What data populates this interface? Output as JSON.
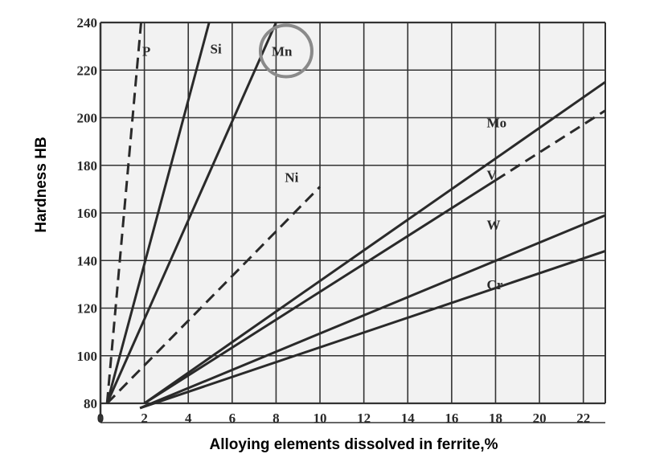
{
  "chart_data": {
    "type": "line",
    "title": "",
    "xlabel": "Alloying elements dissolved in ferrite,%",
    "ylabel": "Hardness HB",
    "xlim": [
      0,
      23
    ],
    "ylim": [
      80,
      240
    ],
    "x_ticks": [
      "0",
      "2",
      "4",
      "6",
      "8",
      "10",
      "12",
      "14",
      "16",
      "18",
      "20",
      "22"
    ],
    "y_ticks": [
      "80",
      "100",
      "120",
      "140",
      "160",
      "180",
      "200",
      "220",
      "240"
    ],
    "grid": true,
    "highlight": "Mn",
    "colors": {
      "line": "#2a2a2a",
      "grid": "#333333",
      "highlight_circle": "#8a8a8a",
      "background": "#f2f2f2"
    },
    "series": [
      {
        "name": "P",
        "x": [
          0.3,
          1.85
        ],
        "y": [
          80,
          240
        ],
        "style": "dashed"
      },
      {
        "name": "Si",
        "x": [
          0.3,
          4.95
        ],
        "y": [
          80,
          240
        ],
        "style": "solid"
      },
      {
        "name": "Mn",
        "x": [
          0.3,
          8.0
        ],
        "y": [
          80,
          240
        ],
        "style": "solid"
      },
      {
        "name": "Ni",
        "x": [
          0.3,
          10.0
        ],
        "y": [
          80,
          171
        ],
        "style": "dashed"
      },
      {
        "name": "Mo",
        "x": [
          2.0,
          23.0
        ],
        "y": [
          80,
          215
        ],
        "style": "solid"
      },
      {
        "name": "V",
        "x": [
          2.0,
          23.0
        ],
        "y": [
          80,
          203
        ],
        "style": "dashed-tail"
      },
      {
        "name": "W",
        "x": [
          1.8,
          23.0
        ],
        "y": [
          78,
          159
        ],
        "style": "solid"
      },
      {
        "name": "Cr",
        "x": [
          1.8,
          23.0
        ],
        "y": [
          78,
          144
        ],
        "style": "solid"
      }
    ]
  }
}
